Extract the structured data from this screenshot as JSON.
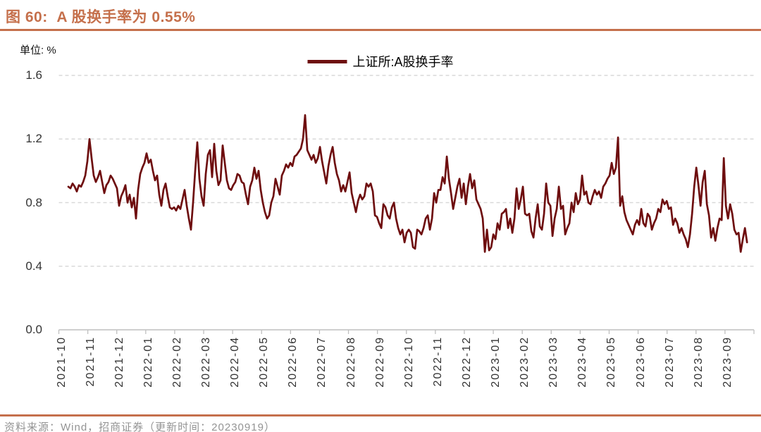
{
  "figure": {
    "title": "图 60:  A 股换手率为 0.55%",
    "unit_label": "单位: %",
    "source_note": "资料来源：Wind，招商证券（更新时间：20230919）",
    "accent_color": "#C5704C"
  },
  "chart_data": {
    "type": "line",
    "title": "图 60: A 股换手率为 0.55%",
    "ylabel": "单位: %",
    "xlabel": "",
    "ylim": [
      0,
      1.6
    ],
    "y_ticks": [
      0.0,
      0.4,
      0.8,
      1.2,
      1.6
    ],
    "x_domain_months": [
      0,
      24
    ],
    "x_tick_labels": [
      "2021-10",
      "2021-11",
      "2021-12",
      "2022-01",
      "2022-02",
      "2022-03",
      "2022-04",
      "2022-05",
      "2022-06",
      "2022-07",
      "2022-08",
      "2022-09",
      "2022-10",
      "2022-11",
      "2022-12",
      "2023-01",
      "2023-02",
      "2023-03",
      "2023-04",
      "2023-05",
      "2023-06",
      "2023-07",
      "2023-08",
      "2023-09"
    ],
    "grid": "horizontal-dashed",
    "legend_position": "top-center",
    "grid_color": "#D9D9D9",
    "axis_color": "#BFBFBF",
    "latest_value": 0.55,
    "series": [
      {
        "name": "上证所:A股换手率",
        "color": "#6E0E0F",
        "x_start_months": 0.328,
        "x_step_months": 0.073,
        "values": [
          0.9,
          0.89,
          0.92,
          0.9,
          0.87,
          0.91,
          0.9,
          0.93,
          0.97,
          1.06,
          1.2,
          1.08,
          0.97,
          0.93,
          0.96,
          1.0,
          0.93,
          0.86,
          0.91,
          0.93,
          0.97,
          0.95,
          0.92,
          0.89,
          0.78,
          0.84,
          0.87,
          0.91,
          0.8,
          0.85,
          0.77,
          0.83,
          0.7,
          0.88,
          0.98,
          1.02,
          1.05,
          1.11,
          1.05,
          1.07,
          1.0,
          0.94,
          0.97,
          0.85,
          0.78,
          0.88,
          0.92,
          0.84,
          0.77,
          0.76,
          0.77,
          0.75,
          0.78,
          0.76,
          0.82,
          0.88,
          0.78,
          0.7,
          0.63,
          0.8,
          1.0,
          1.18,
          0.95,
          0.84,
          0.78,
          0.98,
          1.1,
          1.13,
          0.96,
          1.17,
          1.0,
          0.91,
          0.94,
          1.16,
          1.05,
          0.94,
          0.89,
          0.88,
          0.91,
          0.93,
          0.98,
          0.97,
          0.93,
          0.92,
          0.85,
          0.79,
          0.9,
          0.94,
          1.02,
          0.95,
          1.0,
          0.88,
          0.8,
          0.74,
          0.7,
          0.72,
          0.8,
          0.84,
          0.95,
          0.9,
          0.85,
          0.97,
          1.0,
          1.04,
          1.02,
          1.05,
          1.03,
          1.09,
          1.1,
          1.12,
          1.14,
          1.2,
          1.35,
          1.13,
          1.1,
          1.07,
          1.1,
          1.05,
          1.08,
          1.15,
          1.06,
          0.99,
          0.92,
          1.03,
          1.1,
          1.15,
          1.05,
          0.98,
          0.94,
          0.87,
          0.91,
          0.87,
          0.93,
          0.99,
          0.86,
          0.8,
          0.74,
          0.81,
          0.85,
          0.82,
          0.84,
          0.92,
          0.9,
          0.92,
          0.87,
          0.72,
          0.71,
          0.67,
          0.64,
          0.79,
          0.77,
          0.72,
          0.7,
          0.77,
          0.8,
          0.7,
          0.64,
          0.6,
          0.63,
          0.55,
          0.61,
          0.63,
          0.61,
          0.52,
          0.51,
          0.63,
          0.62,
          0.6,
          0.64,
          0.7,
          0.72,
          0.63,
          0.7,
          0.86,
          0.8,
          0.88,
          0.88,
          0.96,
          0.92,
          1.09,
          0.95,
          0.86,
          0.76,
          0.83,
          0.9,
          0.95,
          0.83,
          0.92,
          0.79,
          0.9,
          0.98,
          0.89,
          0.94,
          0.82,
          0.79,
          0.76,
          0.7,
          0.49,
          0.63,
          0.5,
          0.52,
          0.6,
          0.57,
          0.67,
          0.63,
          0.73,
          0.74,
          0.76,
          0.64,
          0.7,
          0.61,
          0.7,
          0.89,
          0.76,
          0.82,
          0.9,
          0.73,
          0.72,
          0.73,
          0.62,
          0.58,
          0.7,
          0.79,
          0.65,
          0.63,
          0.73,
          0.92,
          0.8,
          0.78,
          0.59,
          0.7,
          0.76,
          0.9,
          0.76,
          0.78,
          0.6,
          0.64,
          0.67,
          0.8,
          0.74,
          0.86,
          0.79,
          0.82,
          0.97,
          0.85,
          0.87,
          0.8,
          0.79,
          0.84,
          0.88,
          0.85,
          0.87,
          0.83,
          0.9,
          0.92,
          0.95,
          0.97,
          1.05,
          0.98,
          1.02,
          1.21,
          0.78,
          0.84,
          0.74,
          0.69,
          0.66,
          0.63,
          0.6,
          0.66,
          0.69,
          0.66,
          0.76,
          0.67,
          0.65,
          0.73,
          0.71,
          0.63,
          0.67,
          0.7,
          0.76,
          0.74,
          0.82,
          0.79,
          0.81,
          0.76,
          0.77,
          0.66,
          0.7,
          0.67,
          0.61,
          0.64,
          0.6,
          0.57,
          0.52,
          0.6,
          0.73,
          0.9,
          1.02,
          0.91,
          0.78,
          0.93,
          1.0,
          0.79,
          0.72,
          0.58,
          0.64,
          0.56,
          0.64,
          0.7,
          0.69,
          1.08,
          0.78,
          0.7,
          0.79,
          0.73,
          0.63,
          0.6,
          0.61,
          0.49,
          0.57,
          0.64,
          0.55
        ]
      }
    ]
  }
}
